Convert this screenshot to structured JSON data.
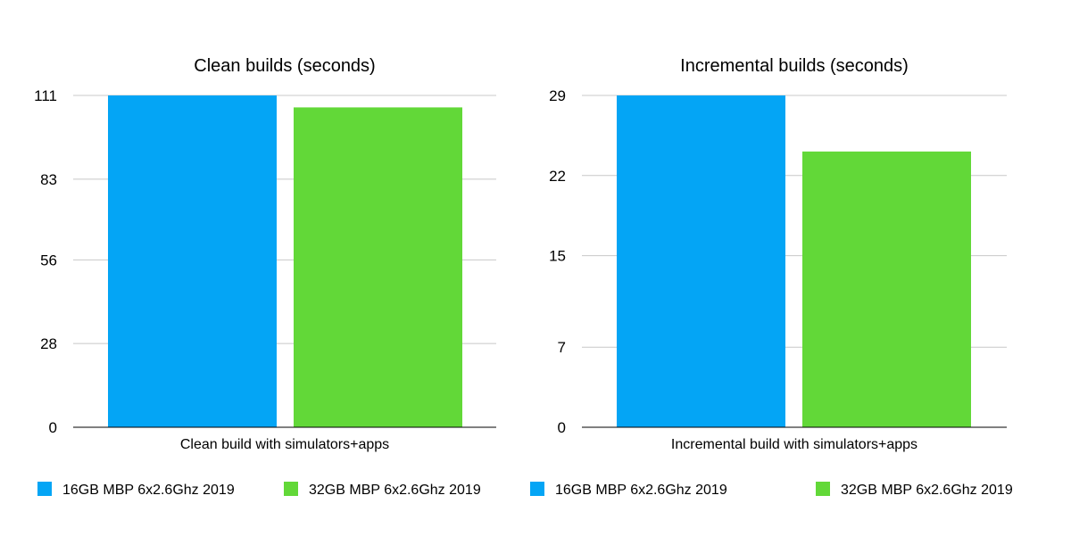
{
  "chart_data": [
    {
      "type": "bar",
      "title": "Clean builds (seconds)",
      "categories": [
        "Clean build with simulators+apps"
      ],
      "ylim": [
        0,
        111
      ],
      "yticks": [
        0,
        28,
        56,
        83,
        111
      ],
      "grid": true,
      "series": [
        {
          "name": "16GB MBP 6x2.6Ghz 2019",
          "color": "#04a5f5",
          "values": [
            111
          ]
        },
        {
          "name": "32GB MBP 6x2.6Ghz 2019",
          "color": "#62d838",
          "values": [
            107
          ]
        }
      ]
    },
    {
      "type": "bar",
      "title": "Incremental builds (seconds)",
      "categories": [
        "Incremental build with simulators+apps"
      ],
      "ylim": [
        0,
        29
      ],
      "yticks": [
        0,
        7,
        15,
        22,
        29
      ],
      "grid": true,
      "series": [
        {
          "name": "16GB MBP 6x2.6Ghz 2019",
          "color": "#04a5f5",
          "values": [
            29
          ]
        },
        {
          "name": "32GB MBP 6x2.6Ghz 2019",
          "color": "#62d838",
          "values": [
            24.1
          ]
        }
      ]
    }
  ]
}
